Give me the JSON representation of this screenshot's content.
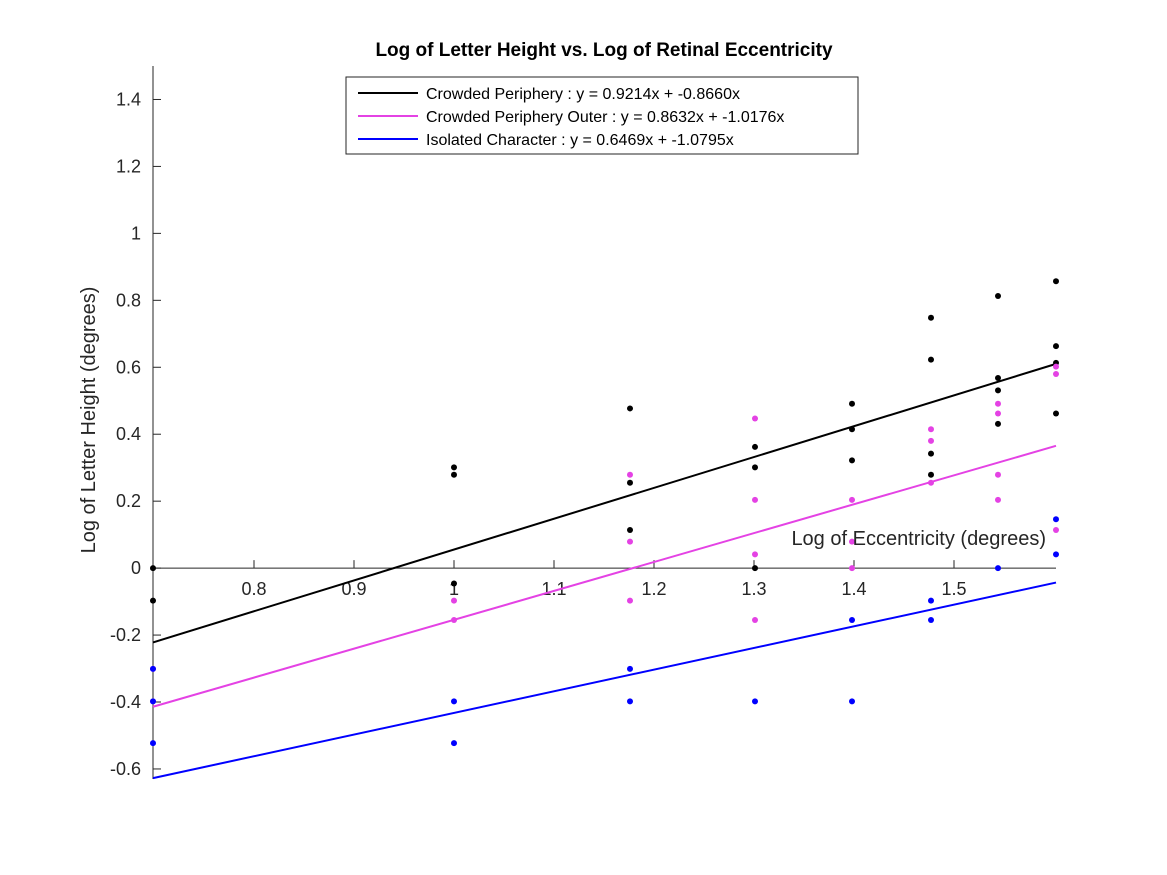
{
  "chart_data": {
    "type": "scatter",
    "title": "Log of Letter Height vs. Log of Retinal Eccentricity",
    "xlabel": "Log of Eccentricity (degrees)",
    "ylabel": "Log of Letter Height (degrees)",
    "xlim": [
      0.699,
      1.602
    ],
    "ylim": [
      -0.63,
      1.5
    ],
    "xticks": [
      0.8,
      0.9,
      1,
      1.1,
      1.2,
      1.3,
      1.4,
      1.5
    ],
    "xtick_labels": [
      "0.8",
      "0.9",
      "1",
      "1.1",
      "1.2",
      "1.3",
      "1.4",
      "1.5"
    ],
    "yticks": [
      -0.6,
      -0.4,
      -0.2,
      0,
      0.2,
      0.4,
      0.6,
      0.8,
      1,
      1.2,
      1.4
    ],
    "ytick_labels": [
      "-0.6",
      "-0.4",
      "-0.2",
      "0",
      "0.2",
      "0.4",
      "0.6",
      "0.8",
      "1",
      "1.2",
      "1.4"
    ],
    "legend_position": "top-center",
    "grid": false,
    "series": [
      {
        "name": "Crowded Periphery : y = 0.9214x + -0.8660x",
        "color": "#000000",
        "fit": {
          "slope": 0.9214,
          "intercept": -0.866
        },
        "points": [
          [
            0.699,
            0.0
          ],
          [
            0.699,
            -0.097
          ],
          [
            1.0,
            0.301
          ],
          [
            1.0,
            0.279
          ],
          [
            1.0,
            -0.046
          ],
          [
            1.176,
            0.477
          ],
          [
            1.176,
            0.255
          ],
          [
            1.176,
            0.114
          ],
          [
            1.301,
            0.362
          ],
          [
            1.301,
            0.301
          ],
          [
            1.301,
            0.0
          ],
          [
            1.398,
            0.491
          ],
          [
            1.398,
            0.415
          ],
          [
            1.398,
            0.322
          ],
          [
            1.477,
            0.748
          ],
          [
            1.477,
            0.623
          ],
          [
            1.477,
            0.342
          ],
          [
            1.477,
            0.279
          ],
          [
            1.544,
            0.813
          ],
          [
            1.544,
            0.568
          ],
          [
            1.544,
            0.531
          ],
          [
            1.544,
            0.431
          ],
          [
            1.602,
            0.857
          ],
          [
            1.602,
            0.663
          ],
          [
            1.602,
            0.613
          ],
          [
            1.602,
            0.462
          ]
        ]
      },
      {
        "name": "Crowded Periphery Outer : y = 0.8632x + -1.0176x",
        "color": "#e442e4",
        "fit": {
          "slope": 0.8632,
          "intercept": -1.0176
        },
        "points": [
          [
            0.699,
            -0.301
          ],
          [
            0.699,
            -0.398
          ],
          [
            1.0,
            -0.097
          ],
          [
            1.0,
            -0.155
          ],
          [
            1.176,
            0.279
          ],
          [
            1.176,
            0.079
          ],
          [
            1.176,
            -0.097
          ],
          [
            1.301,
            0.447
          ],
          [
            1.301,
            0.204
          ],
          [
            1.301,
            0.041
          ],
          [
            1.301,
            -0.155
          ],
          [
            1.398,
            0.204
          ],
          [
            1.398,
            0.079
          ],
          [
            1.398,
            0.0
          ],
          [
            1.477,
            0.415
          ],
          [
            1.477,
            0.38
          ],
          [
            1.477,
            0.255
          ],
          [
            1.544,
            0.491
          ],
          [
            1.544,
            0.462
          ],
          [
            1.544,
            0.279
          ],
          [
            1.544,
            0.204
          ],
          [
            1.602,
            0.602
          ],
          [
            1.602,
            0.58
          ],
          [
            1.602,
            0.114
          ]
        ]
      },
      {
        "name": "Isolated Character : y = 0.6469x + -1.0795x",
        "color": "#0000ff",
        "fit": {
          "slope": 0.6469,
          "intercept": -1.0795
        },
        "points": [
          [
            0.699,
            -0.301
          ],
          [
            0.699,
            -0.398
          ],
          [
            0.699,
            -0.523
          ],
          [
            1.0,
            -0.398
          ],
          [
            1.0,
            -0.523
          ],
          [
            1.176,
            -0.301
          ],
          [
            1.176,
            -0.398
          ],
          [
            1.301,
            -0.398
          ],
          [
            1.398,
            -0.155
          ],
          [
            1.398,
            -0.398
          ],
          [
            1.477,
            -0.097
          ],
          [
            1.477,
            -0.155
          ],
          [
            1.544,
            0.0
          ],
          [
            1.602,
            0.146
          ],
          [
            1.602,
            0.041
          ]
        ]
      }
    ]
  }
}
